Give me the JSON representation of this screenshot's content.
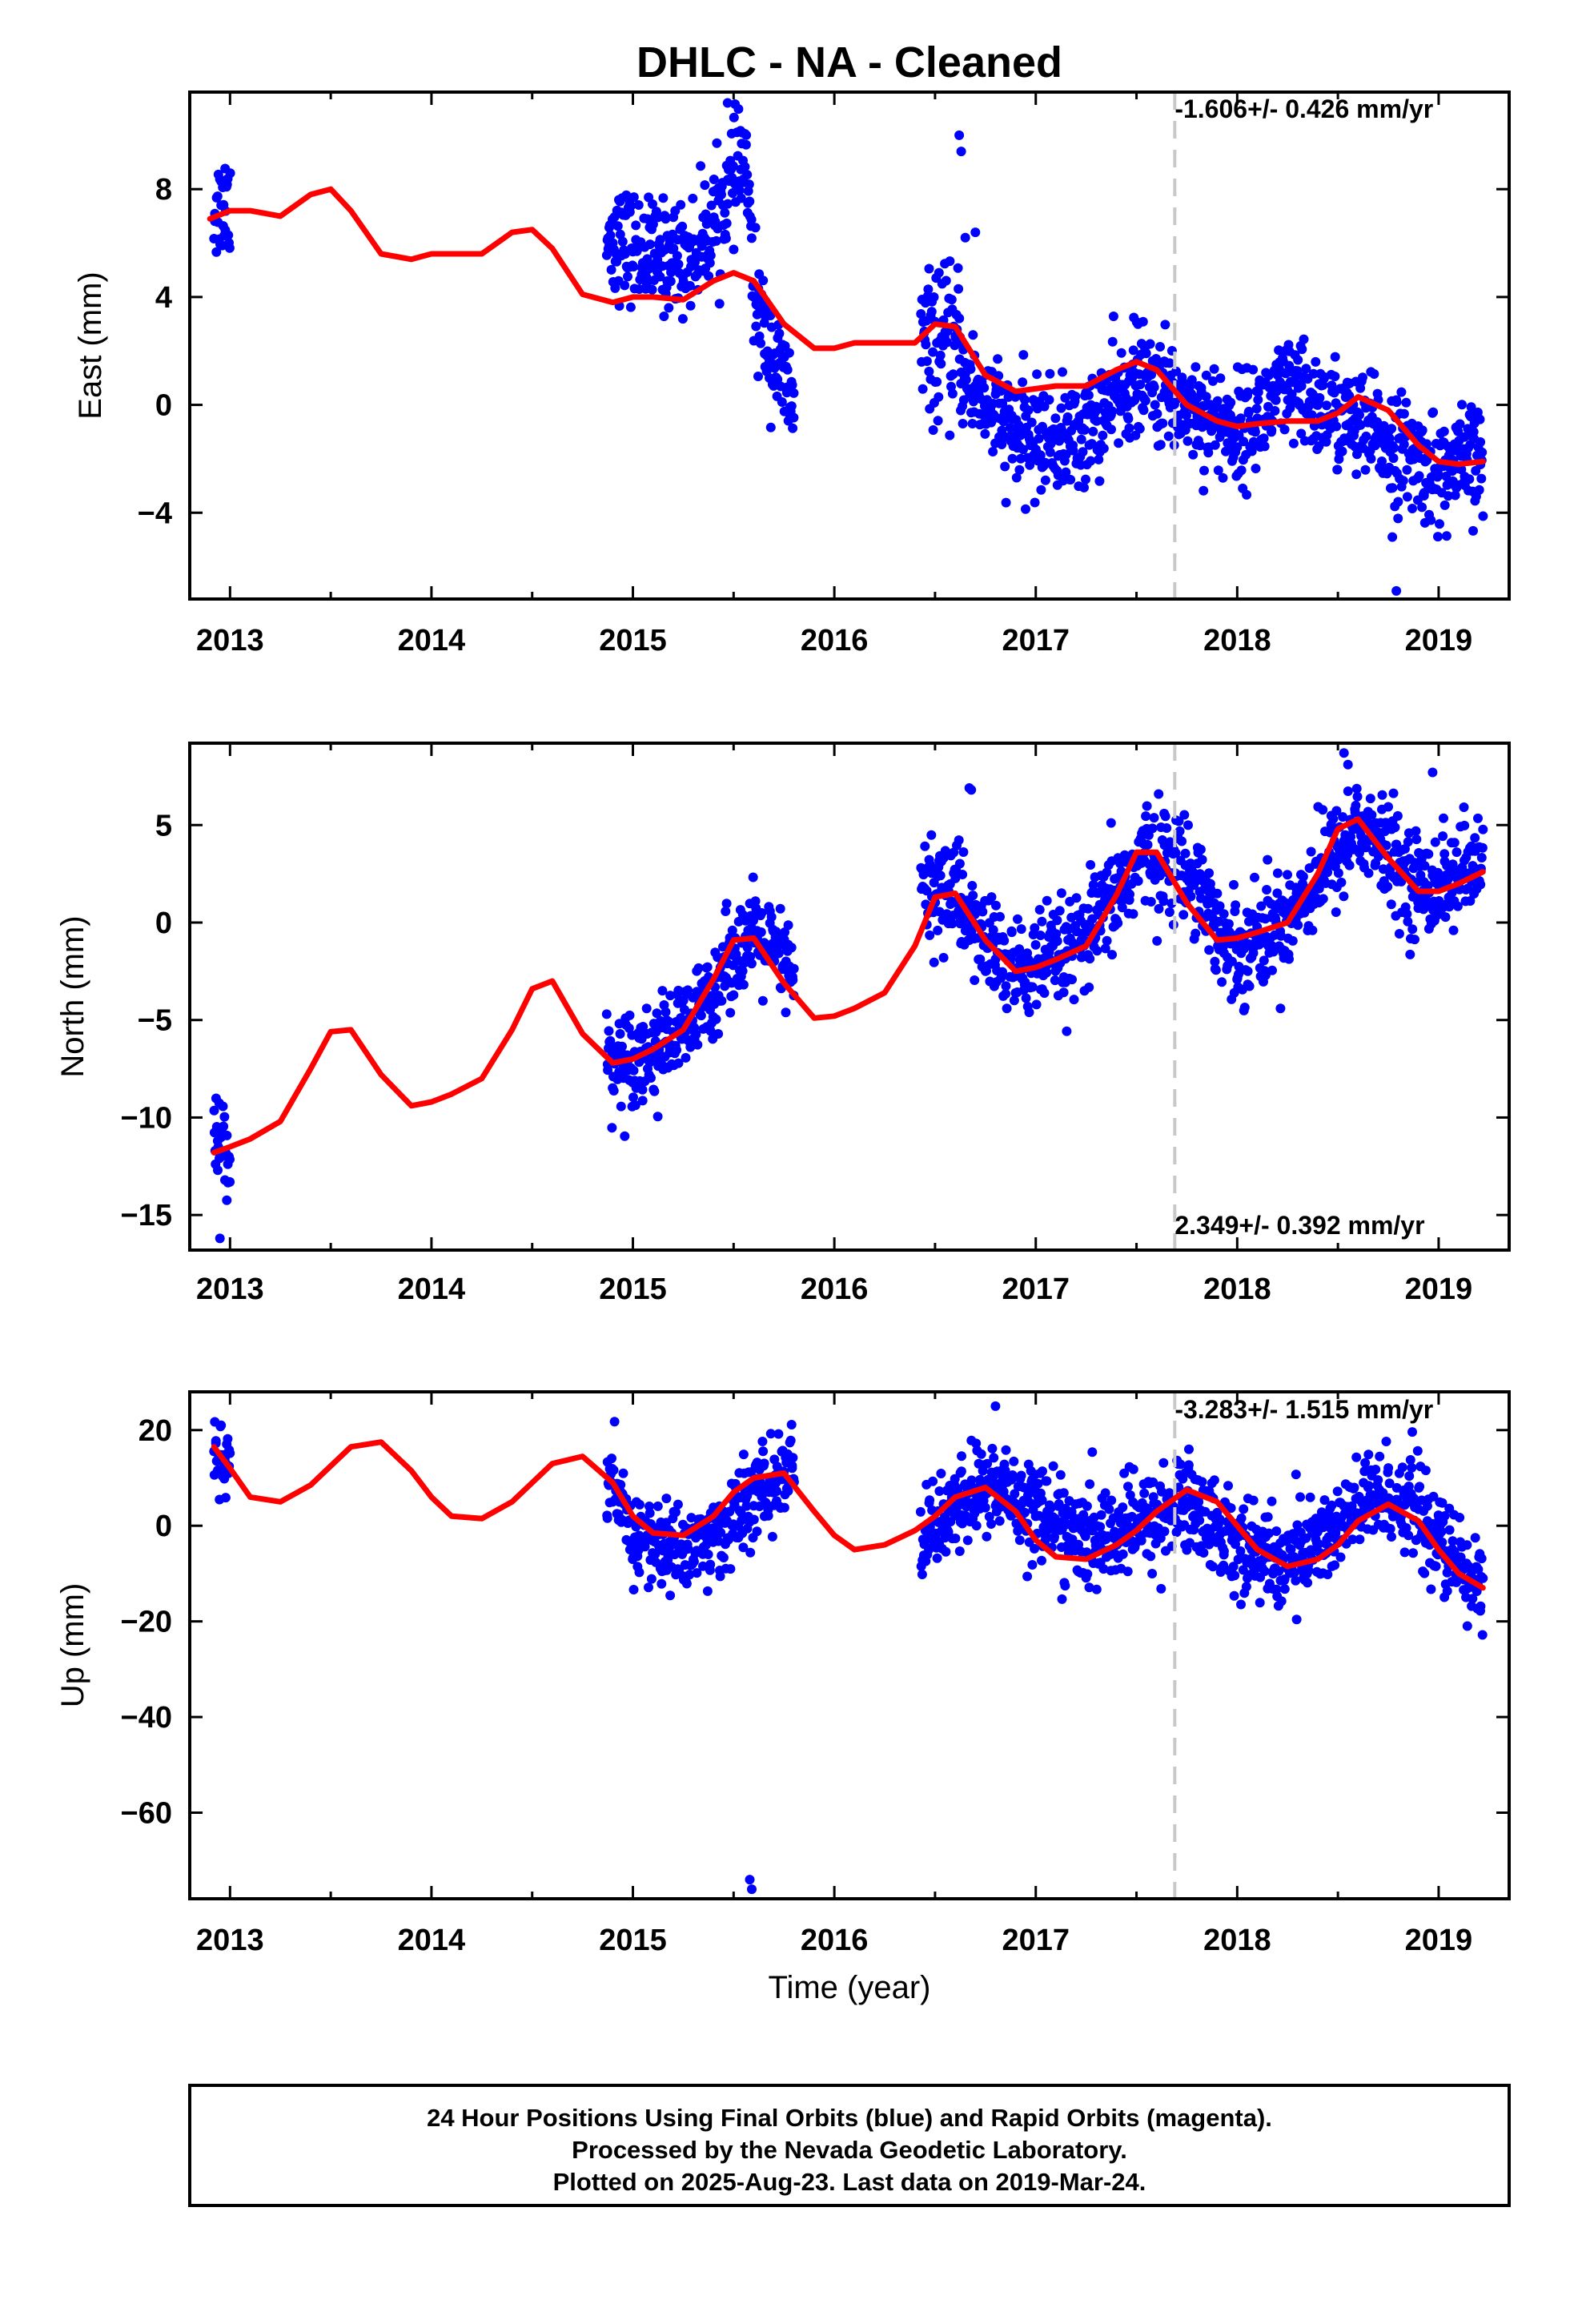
{
  "title": "DHLC  - NA - Cleaned",
  "xlabel": "Time (year)",
  "footer": {
    "line1": "24 Hour Positions Using Final Orbits (blue) and Rapid Orbits (magenta).",
    "line2": "Processed by the Nevada Geodetic Laboratory.",
    "line3": "Plotted on 2025-Aug-23. Last data on 2019-Mar-24."
  },
  "colors": {
    "final_orbits": "#0000ff",
    "model": "#ff0000",
    "event_line": "#c8c8c8",
    "frame": "#000000"
  },
  "chart_data": [
    {
      "type": "scatter",
      "panel": "east",
      "ylabel": "East (mm)",
      "rate_text": "-1.606+/- 0.426 mm/yr",
      "xlim": [
        2012.8,
        2019.35
      ],
      "ylim": [
        -7.2,
        11.6
      ],
      "x_ticks": [
        2013,
        2014,
        2015,
        2016,
        2017,
        2018,
        2019
      ],
      "y_ticks": [
        8,
        4,
        0,
        -4
      ],
      "y_tick_labels": [
        "8",
        "4",
        "0",
        "−4"
      ],
      "event_line_x": 2017.69,
      "series": [
        {
          "role": "daily-positions",
          "segments": [
            {
              "x0": 2012.92,
              "x1": 2013.0,
              "trend": [
                [
                  2012.92,
                  7.2
                ],
                [
                  2013.0,
                  7.6
                ]
              ],
              "noise": 1.0
            },
            {
              "x0": 2014.87,
              "x1": 2015.8,
              "trend": [
                [
                  2014.87,
                  6.3
                ],
                [
                  2015.1,
                  5.5
                ],
                [
                  2015.3,
                  5.5
                ],
                [
                  2015.45,
                  7.5
                ],
                [
                  2015.56,
                  9.3
                ],
                [
                  2015.6,
                  4.0
                ],
                [
                  2015.65,
                  2.8
                ],
                [
                  2015.72,
                  1.3
                ],
                [
                  2015.8,
                  0.0
                ]
              ],
              "noise": 1.0
            },
            {
              "x0": 2016.43,
              "x1": 2016.63,
              "trend": [
                [
                  2016.43,
                  2.2
                ],
                [
                  2016.63,
                  2.2
                ]
              ],
              "noise": 1.3
            },
            {
              "x0": 2016.63,
              "x1": 2019.22,
              "trend": [
                [
                  2016.63,
                  1.2
                ],
                [
                  2016.9,
                  -1.2
                ],
                [
                  2017.2,
                  -1.3
                ],
                [
                  2017.5,
                  1.0
                ],
                [
                  2017.75,
                  0.0
                ],
                [
                  2018.0,
                  -1.0
                ],
                [
                  2018.25,
                  0.5
                ],
                [
                  2018.5,
                  -0.4
                ],
                [
                  2018.8,
                  -1.6
                ],
                [
                  2019.0,
                  -2.6
                ],
                [
                  2019.22,
                  -1.9
                ]
              ],
              "noise": 1.0
            }
          ],
          "outliers": [
            [
              2015.47,
              11.2
            ],
            [
              2016.62,
              10.0
            ],
            [
              2016.63,
              9.4
            ],
            [
              2016.65,
              6.2
            ],
            [
              2016.7,
              6.4
            ],
            [
              2018.77,
              -4.9
            ],
            [
              2018.79,
              -6.9
            ]
          ]
        },
        {
          "role": "model-fit",
          "x": [
            2012.9,
            2013.0,
            2013.1,
            2013.25,
            2013.4,
            2013.5,
            2013.6,
            2013.75,
            2013.9,
            2014.0,
            2014.1,
            2014.25,
            2014.4,
            2014.5,
            2014.6,
            2014.75,
            2014.9,
            2015.0,
            2015.1,
            2015.25,
            2015.4,
            2015.5,
            2015.6,
            2015.75,
            2015.9,
            2016.0,
            2016.1,
            2016.25,
            2016.4,
            2016.5,
            2016.6,
            2016.75,
            2016.9,
            2017.0,
            2017.1,
            2017.25,
            2017.4,
            2017.5,
            2017.6,
            2017.75,
            2017.9,
            2018.0,
            2018.1,
            2018.25,
            2018.4,
            2018.5,
            2018.6,
            2018.75,
            2018.9,
            2019.0,
            2019.1,
            2019.22
          ],
          "y": [
            6.9,
            7.2,
            7.2,
            7.0,
            7.8,
            8.0,
            7.2,
            5.6,
            5.4,
            5.6,
            5.6,
            5.6,
            6.4,
            6.5,
            5.8,
            4.1,
            3.8,
            4.0,
            4.0,
            3.9,
            4.6,
            4.9,
            4.6,
            3.0,
            2.1,
            2.1,
            2.3,
            2.3,
            2.3,
            3.0,
            2.9,
            1.1,
            0.5,
            0.6,
            0.7,
            0.7,
            1.3,
            1.6,
            1.3,
            0.0,
            -0.6,
            -0.8,
            -0.7,
            -0.6,
            -0.6,
            -0.3,
            0.3,
            -0.2,
            -1.5,
            -2.1,
            -2.2,
            -2.1
          ]
        }
      ]
    },
    {
      "type": "scatter",
      "panel": "north",
      "ylabel": "North (mm)",
      "rate_text": "2.349+/- 0.392 mm/yr",
      "xlim": [
        2012.8,
        2019.35
      ],
      "ylim": [
        -16.8,
        9.2
      ],
      "x_ticks": [
        2013,
        2014,
        2015,
        2016,
        2017,
        2018,
        2019
      ],
      "y_ticks": [
        5,
        0,
        -5,
        -10,
        -15
      ],
      "y_tick_labels": [
        "5",
        "0",
        "−5",
        "−10",
        "−15"
      ],
      "event_line_x": 2017.69,
      "series": [
        {
          "role": "daily-positions",
          "segments": [
            {
              "x0": 2012.92,
              "x1": 2013.0,
              "trend": [
                [
                  2012.92,
                  -11.5
                ],
                [
                  2013.0,
                  -11.0
                ]
              ],
              "noise": 1.5
            },
            {
              "x0": 2014.87,
              "x1": 2015.8,
              "trend": [
                [
                  2014.87,
                  -7.2
                ],
                [
                  2015.1,
                  -6.6
                ],
                [
                  2015.3,
                  -5.2
                ],
                [
                  2015.5,
                  -1.5
                ],
                [
                  2015.62,
                  -0.8
                ],
                [
                  2015.8,
                  -2.6
                ]
              ],
              "noise": 1.2
            },
            {
              "x0": 2016.43,
              "x1": 2016.63,
              "trend": [
                [
                  2016.43,
                  1.5
                ],
                [
                  2016.63,
                  1.8
                ]
              ],
              "noise": 1.5
            },
            {
              "x0": 2016.63,
              "x1": 2019.22,
              "trend": [
                [
                  2016.63,
                  0.5
                ],
                [
                  2016.9,
                  -2.6
                ],
                [
                  2017.2,
                  -1.5
                ],
                [
                  2017.55,
                  3.6
                ],
                [
                  2017.8,
                  2.5
                ],
                [
                  2017.95,
                  -1.5
                ],
                [
                  2018.2,
                  -0.2
                ],
                [
                  2018.45,
                  3.0
                ],
                [
                  2018.6,
                  5.0
                ],
                [
                  2018.75,
                  3.5
                ],
                [
                  2018.9,
                  1.8
                ],
                [
                  2019.22,
                  2.8
                ]
              ],
              "noise": 1.3
            }
          ],
          "outliers": [
            [
              2012.95,
              -16.2
            ],
            [
              2016.67,
              6.9
            ],
            [
              2016.68,
              6.8
            ],
            [
              2018.53,
              8.7
            ],
            [
              2018.55,
              8.1
            ],
            [
              2018.97,
              7.7
            ]
          ]
        },
        {
          "role": "model-fit",
          "x": [
            2012.92,
            2013.0,
            2013.1,
            2013.25,
            2013.4,
            2013.5,
            2013.6,
            2013.75,
            2013.9,
            2014.0,
            2014.1,
            2014.25,
            2014.4,
            2014.5,
            2014.6,
            2014.75,
            2014.9,
            2015.0,
            2015.1,
            2015.25,
            2015.4,
            2015.5,
            2015.6,
            2015.75,
            2015.9,
            2016.0,
            2016.1,
            2016.25,
            2016.4,
            2016.5,
            2016.6,
            2016.75,
            2016.9,
            2017.0,
            2017.1,
            2017.25,
            2017.4,
            2017.5,
            2017.6,
            2017.75,
            2017.9,
            2018.0,
            2018.1,
            2018.25,
            2018.4,
            2018.5,
            2018.6,
            2018.75,
            2018.9,
            2019.0,
            2019.1,
            2019.22
          ],
          "y": [
            -11.8,
            -11.5,
            -11.1,
            -10.2,
            -7.5,
            -5.6,
            -5.5,
            -7.8,
            -9.4,
            -9.2,
            -8.8,
            -8.0,
            -5.5,
            -3.4,
            -3.0,
            -5.7,
            -7.2,
            -7.0,
            -6.5,
            -5.5,
            -2.9,
            -0.9,
            -0.8,
            -3.1,
            -4.9,
            -4.8,
            -4.4,
            -3.6,
            -1.2,
            1.3,
            1.5,
            -0.9,
            -2.5,
            -2.3,
            -1.9,
            -1.2,
            1.4,
            3.6,
            3.6,
            1.0,
            -0.9,
            -0.8,
            -0.5,
            0.0,
            2.5,
            4.8,
            5.3,
            3.3,
            1.6,
            1.6,
            2.0,
            2.6
          ]
        }
      ]
    },
    {
      "type": "scatter",
      "panel": "up",
      "ylabel": "Up (mm)",
      "rate_text": "-3.283+/- 1.515 mm/yr",
      "xlim": [
        2012.8,
        2019.35
      ],
      "ylim": [
        -78,
        28
      ],
      "x_ticks": [
        2013,
        2014,
        2015,
        2016,
        2017,
        2018,
        2019
      ],
      "y_ticks": [
        20,
        0,
        -20,
        -40,
        -60
      ],
      "y_tick_labels": [
        "20",
        "0",
        "−20",
        "−40",
        "−60"
      ],
      "event_line_x": 2017.69,
      "series": [
        {
          "role": "daily-positions",
          "segments": [
            {
              "x0": 2012.92,
              "x1": 2013.0,
              "trend": [
                [
                  2012.92,
                  17.0
                ],
                [
                  2013.0,
                  12.0
                ]
              ],
              "noise": 3.5
            },
            {
              "x0": 2014.87,
              "x1": 2015.8,
              "trend": [
                [
                  2014.87,
                  9.0
                ],
                [
                  2015.0,
                  -2.0
                ],
                [
                  2015.2,
                  -5.0
                ],
                [
                  2015.4,
                  -3.0
                ],
                [
                  2015.6,
                  6.0
                ],
                [
                  2015.8,
                  12.0
                ]
              ],
              "noise": 4.5
            },
            {
              "x0": 2016.43,
              "x1": 2016.63,
              "trend": [
                [
                  2016.43,
                  -2.0
                ],
                [
                  2016.63,
                  3.0
                ]
              ],
              "noise": 4.5
            },
            {
              "x0": 2016.63,
              "x1": 2019.22,
              "trend": [
                [
                  2016.63,
                  6.0
                ],
                [
                  2016.8,
                  8.0
                ],
                [
                  2017.0,
                  4.0
                ],
                [
                  2017.25,
                  -4.0
                ],
                [
                  2017.5,
                  0.0
                ],
                [
                  2017.75,
                  5.0
                ],
                [
                  2017.95,
                  -2.0
                ],
                [
                  2018.2,
                  -8.0
                ],
                [
                  2018.45,
                  -2.0
                ],
                [
                  2018.65,
                  5.0
                ],
                [
                  2018.85,
                  6.0
                ],
                [
                  2019.0,
                  -4.0
                ],
                [
                  2019.22,
                  -14.0
                ]
              ],
              "noise": 5.0
            }
          ],
          "outliers": [
            [
              2015.58,
              -74.0
            ],
            [
              2015.59,
              -76.0
            ],
            [
              2016.8,
              25.0
            ],
            [
              2017.76,
              16.0
            ]
          ]
        },
        {
          "role": "model-fit",
          "x": [
            2012.92,
            2013.0,
            2013.1,
            2013.25,
            2013.4,
            2013.5,
            2013.6,
            2013.75,
            2013.9,
            2014.0,
            2014.1,
            2014.25,
            2014.4,
            2014.5,
            2014.6,
            2014.75,
            2014.9,
            2015.0,
            2015.1,
            2015.25,
            2015.4,
            2015.5,
            2015.6,
            2015.75,
            2015.9,
            2016.0,
            2016.1,
            2016.25,
            2016.4,
            2016.5,
            2016.6,
            2016.75,
            2016.9,
            2017.0,
            2017.1,
            2017.25,
            2017.4,
            2017.5,
            2017.6,
            2017.75,
            2017.9,
            2018.0,
            2018.1,
            2018.25,
            2018.4,
            2018.5,
            2018.6,
            2018.75,
            2018.9,
            2019.0,
            2019.1,
            2019.22
          ],
          "y": [
            16.5,
            12.0,
            6.0,
            5.0,
            8.5,
            12.5,
            16.5,
            17.5,
            11.5,
            6.0,
            2.0,
            1.5,
            5.0,
            9.0,
            13.0,
            14.5,
            9.0,
            2.0,
            -1.5,
            -2.0,
            2.0,
            7.0,
            10.0,
            11.0,
            3.0,
            -2.0,
            -5.0,
            -4.0,
            -1.0,
            2.0,
            6.0,
            8.0,
            3.0,
            -3.0,
            -6.5,
            -7.0,
            -4.0,
            -1.0,
            3.0,
            7.5,
            5.0,
            0.0,
            -5.0,
            -8.5,
            -7.0,
            -4.0,
            1.0,
            4.5,
            1.0,
            -5.0,
            -10.0,
            -13.0
          ]
        }
      ]
    }
  ]
}
